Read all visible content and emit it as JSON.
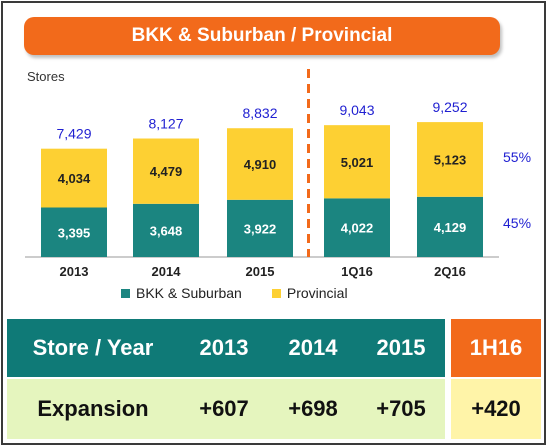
{
  "title": "BKK & Suburban / Provincial",
  "chart_data": {
    "type": "bar",
    "stacked": true,
    "ylabel": "Stores",
    "categories": [
      "2013",
      "2014",
      "2015",
      "1Q16",
      "2Q16"
    ],
    "series": [
      {
        "name": "BKK & Suburban",
        "values": [
          3395,
          3648,
          3922,
          4022,
          4129
        ],
        "color": "#1b8580"
      },
      {
        "name": "Provincial",
        "values": [
          4034,
          4479,
          4910,
          5021,
          5123
        ],
        "color": "#fdd033"
      }
    ],
    "series_labels": [
      [
        "3,395",
        "3,648",
        "3,922",
        "4,022",
        "4,129"
      ],
      [
        "4,034",
        "4,479",
        "4,910",
        "5,021",
        "5,123"
      ]
    ],
    "totals": [
      7429,
      8127,
      8832,
      9043,
      9252
    ],
    "total_labels": [
      "7,429",
      "8,127",
      "8,832",
      "9,043",
      "9,252"
    ],
    "share_labels": {
      "provincial": "55%",
      "bkk": "45%"
    },
    "separator_after": "2015",
    "legend_position": "bottom",
    "grid": false
  },
  "table": {
    "header": [
      "Store / Year",
      "2013",
      "2014",
      "2015"
    ],
    "header_extra": "1H16",
    "row_label": "Expansion",
    "row_values": [
      "+607",
      "+698",
      "+705"
    ],
    "row_extra": "+420"
  },
  "colors": {
    "accent": "#f26a1b",
    "teal": "#0f7a77",
    "yellow": "#fdd033",
    "total_text": "#1f1fd1"
  }
}
